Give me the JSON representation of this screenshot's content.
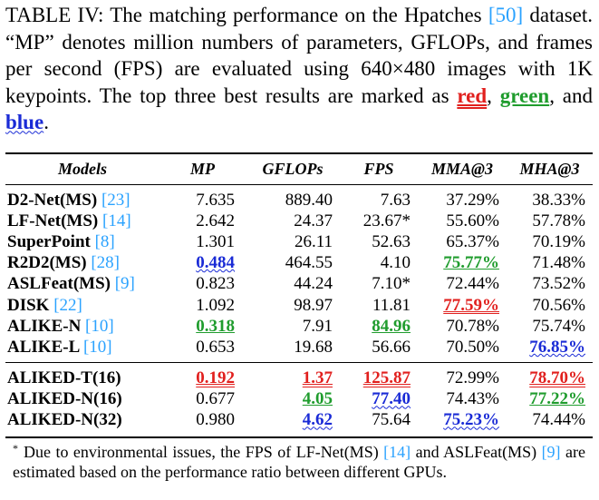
{
  "caption": {
    "part1": "TABLE IV: The matching performance on the Hpatches ",
    "cite": "[50]",
    "part2": " dataset. “MP” denotes million numbers of parameters, GFLOPs, and frames per second (FPS) are evaluated using 640×480 images with 1K keypoints. The top three best results are marked as ",
    "red_label": "red",
    "sep1": ", ",
    "green_label": "green",
    "sep2": ", and ",
    "blue_label": "blue",
    "end": "."
  },
  "table": {
    "headers": [
      "Models",
      "MP",
      "GFLOPs",
      "FPS",
      "MMA@3",
      "MHA@3"
    ],
    "group1": [
      {
        "model": "D2-Net(MS) ",
        "cite": "[23]",
        "cells": [
          {
            "v": "7.635",
            "m": ""
          },
          {
            "v": "889.40",
            "m": ""
          },
          {
            "v": "7.63",
            "m": ""
          },
          {
            "v": "37.29%",
            "m": ""
          },
          {
            "v": "38.33%",
            "m": ""
          }
        ]
      },
      {
        "model": "LF-Net(MS) ",
        "cite": "[14]",
        "cells": [
          {
            "v": "2.642",
            "m": ""
          },
          {
            "v": "24.37",
            "m": ""
          },
          {
            "v": "23.67*",
            "m": ""
          },
          {
            "v": "55.60%",
            "m": ""
          },
          {
            "v": "57.78%",
            "m": ""
          }
        ]
      },
      {
        "model": "SuperPoint ",
        "cite": "[8]",
        "cells": [
          {
            "v": "1.301",
            "m": ""
          },
          {
            "v": "26.11",
            "m": ""
          },
          {
            "v": "52.63",
            "m": ""
          },
          {
            "v": "65.37%",
            "m": ""
          },
          {
            "v": "70.19%",
            "m": ""
          }
        ]
      },
      {
        "model": "R2D2(MS) ",
        "cite": "[28]",
        "cells": [
          {
            "v": "0.484",
            "m": "blue"
          },
          {
            "v": "464.55",
            "m": ""
          },
          {
            "v": "4.10",
            "m": ""
          },
          {
            "v": "75.77%",
            "m": "green"
          },
          {
            "v": "71.48%",
            "m": ""
          }
        ]
      },
      {
        "model": "ASLFeat(MS) ",
        "cite": "[9]",
        "cells": [
          {
            "v": "0.823",
            "m": ""
          },
          {
            "v": "44.24",
            "m": ""
          },
          {
            "v": "7.10*",
            "m": ""
          },
          {
            "v": "72.44%",
            "m": ""
          },
          {
            "v": "73.52%",
            "m": ""
          }
        ]
      },
      {
        "model": "DISK ",
        "cite": "[22]",
        "cells": [
          {
            "v": "1.092",
            "m": ""
          },
          {
            "v": "98.97",
            "m": ""
          },
          {
            "v": "11.81",
            "m": ""
          },
          {
            "v": "77.59%",
            "m": "red"
          },
          {
            "v": "70.56%",
            "m": ""
          }
        ]
      },
      {
        "model": "ALIKE-N ",
        "cite": "[10]",
        "cells": [
          {
            "v": "0.318",
            "m": "green"
          },
          {
            "v": "7.91",
            "m": ""
          },
          {
            "v": "84.96",
            "m": "green"
          },
          {
            "v": "70.78%",
            "m": ""
          },
          {
            "v": "75.74%",
            "m": ""
          }
        ]
      },
      {
        "model": "ALIKE-L ",
        "cite": "[10]",
        "cells": [
          {
            "v": "0.653",
            "m": ""
          },
          {
            "v": "19.68",
            "m": ""
          },
          {
            "v": "56.66",
            "m": ""
          },
          {
            "v": "70.50%",
            "m": ""
          },
          {
            "v": "76.85%",
            "m": "blue"
          }
        ]
      }
    ],
    "group2": [
      {
        "model": "ALIKED-T(16)",
        "cite": "",
        "cells": [
          {
            "v": "0.192",
            "m": "red"
          },
          {
            "v": "1.37",
            "m": "red"
          },
          {
            "v": "125.87",
            "m": "red"
          },
          {
            "v": "72.99%",
            "m": ""
          },
          {
            "v": "78.70%",
            "m": "red"
          }
        ]
      },
      {
        "model": "ALIKED-N(16)",
        "cite": "",
        "cells": [
          {
            "v": "0.677",
            "m": ""
          },
          {
            "v": "4.05",
            "m": "green"
          },
          {
            "v": "77.40",
            "m": "blue"
          },
          {
            "v": "74.43%",
            "m": ""
          },
          {
            "v": "77.22%",
            "m": "green"
          }
        ]
      },
      {
        "model": "ALIKED-N(32)",
        "cite": "",
        "cells": [
          {
            "v": "0.980",
            "m": ""
          },
          {
            "v": "4.62",
            "m": "blue"
          },
          {
            "v": "75.64",
            "m": ""
          },
          {
            "v": "75.23%",
            "m": "blue"
          },
          {
            "v": "74.44%",
            "m": ""
          }
        ]
      }
    ]
  },
  "footnote": {
    "marker": "*",
    "part1": "Due to environmental issues, the FPS of LF-Net(MS) ",
    "cite1": "[14]",
    "part2": " and ASLFeat(MS) ",
    "cite2": "[9]",
    "part3": " are estimated based on the performance ratio between different GPUs."
  },
  "colors": {
    "red": "#e1201e",
    "green": "#1f9c2d",
    "blue": "#1a2bd6",
    "cite": "#2aa2ff"
  }
}
